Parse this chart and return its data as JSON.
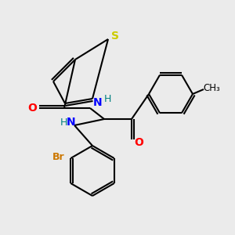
{
  "background_color": "#ebebeb",
  "atom_colors": {
    "S": "#cccc00",
    "O": "#ff0000",
    "N": "#0000ff",
    "Br": "#cc7700",
    "C": "#000000",
    "H": "#008080"
  },
  "bond_color": "#000000",
  "bond_width": 1.5,
  "figsize": [
    3.0,
    3.0
  ],
  "dpi": 100
}
